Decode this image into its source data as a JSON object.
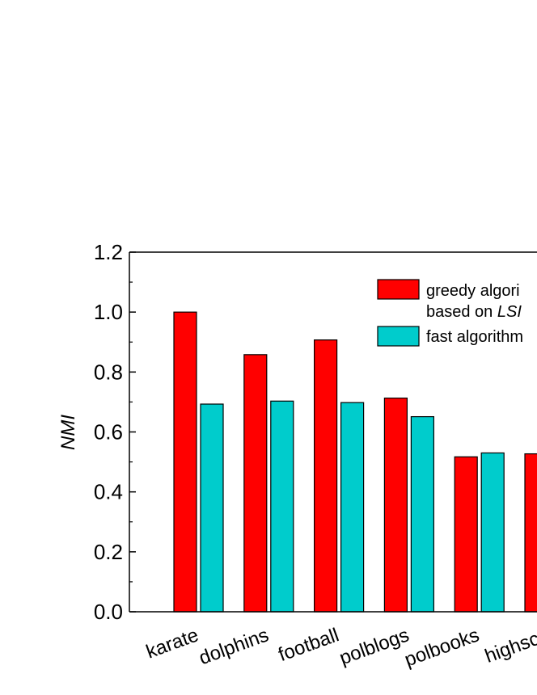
{
  "chart_data": {
    "type": "bar",
    "title": "",
    "xlabel": "",
    "ylabel": "NMI",
    "ylim": [
      0.0,
      1.2
    ],
    "yticks": [
      "0.0",
      "0.2",
      "0.4",
      "0.6",
      "0.8",
      "1.0",
      "1.2"
    ],
    "categories": [
      "karate",
      "dolphins",
      "football",
      "polblogs",
      "polbooks",
      "highschool"
    ],
    "categories_visible": [
      "karate",
      "dolphins",
      "football",
      "polblogs",
      "polbooks",
      "highsch"
    ],
    "series": [
      {
        "name": "greedy algorithm based on LSM",
        "legend_line1": "greedy algori",
        "legend_line2_prefix": "based on ",
        "legend_line2_italic": "LSI",
        "color": "#ff0000",
        "values": [
          1.0,
          0.858,
          0.907,
          0.713,
          0.517,
          0.527
        ]
      },
      {
        "name": "fast algorithm",
        "legend_line1": "fast algorithm",
        "color": "#00cccc",
        "values": [
          0.693,
          0.703,
          0.698,
          0.651,
          0.53,
          null
        ]
      }
    ],
    "legend_position": "top-right",
    "grid": false
  }
}
